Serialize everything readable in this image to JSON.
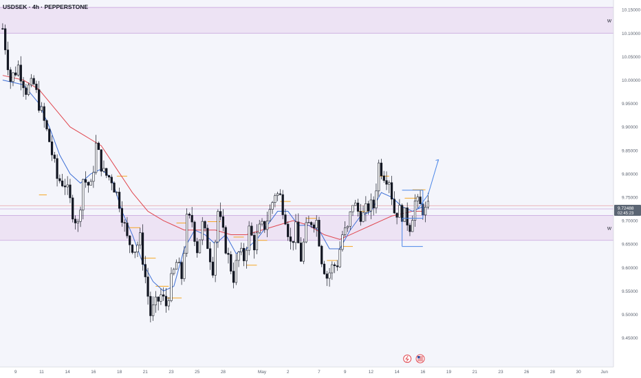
{
  "header": {
    "symbol_title": "USDSEK · 4h · PEPPERSTONE"
  },
  "price_label": {
    "price": "9.72488",
    "countdown": "02:45:23"
  },
  "zones": [
    {
      "label": "W",
      "from": 10.1,
      "to": 10.155
    },
    {
      "label": "W",
      "from": 9.658,
      "to": 9.711
    }
  ],
  "events": {
    "flash_icon": "lightning-event-icon",
    "flag_icon": "us-flag-event-icon"
  },
  "colors": {
    "bull": "#131722",
    "bear": "#131722",
    "zone_fill": "#ede3f4",
    "zone_line": "#c9a9de",
    "ema_fast": "#3d6fd6",
    "ema_slow": "#e0464e",
    "level": "#f5a623",
    "projection": "#4a86e8",
    "price_tag": "#5b6573",
    "panel_bg": "#f3f4fb"
  },
  "chart_data": {
    "type": "candlestick",
    "title": "USDSEK · 4h · PEPPERSTONE",
    "ylim": [
      9.42,
      10.165
    ],
    "y_ticks": [
      10.15,
      10.1,
      10.05,
      10.0,
      9.95,
      9.9,
      9.85,
      9.8,
      9.75,
      9.7,
      9.65,
      9.6,
      9.55,
      9.5,
      9.45
    ],
    "y_tick_labels": [
      "10.15000",
      "10.10000",
      "10.05000",
      "10.00000",
      "9.95000",
      "9.90000",
      "9.85000",
      "9.80000",
      "9.75000",
      "9.70000",
      "9.65000",
      "9.60000",
      "9.55000",
      "9.50000",
      "9.45000"
    ],
    "x_tick_labels": [
      "9",
      "11",
      "14",
      "16",
      "18",
      "21",
      "23",
      "25",
      "28",
      "May",
      "2",
      "7",
      "9",
      "12",
      "14",
      "16",
      "19",
      "21",
      "23",
      "26",
      "28",
      "30",
      "Jun"
    ],
    "x_tick_index": [
      5,
      15,
      25,
      35,
      45,
      55,
      65,
      75,
      85,
      100,
      110,
      122,
      132,
      142,
      152,
      162,
      172,
      182,
      192,
      202,
      212,
      222,
      232
    ],
    "n_slots": 236,
    "waypoints": [
      [
        0,
        10.11
      ],
      [
        3,
        10.0
      ],
      [
        6,
        10.03
      ],
      [
        9,
        9.98
      ],
      [
        12,
        9.99
      ],
      [
        15,
        9.93
      ],
      [
        18,
        9.87
      ],
      [
        21,
        9.79
      ],
      [
        24,
        9.78
      ],
      [
        27,
        9.72
      ],
      [
        29,
        9.69
      ],
      [
        31,
        9.79
      ],
      [
        34,
        9.77
      ],
      [
        36,
        9.86
      ],
      [
        39,
        9.8
      ],
      [
        42,
        9.79
      ],
      [
        45,
        9.74
      ],
      [
        48,
        9.66
      ],
      [
        51,
        9.64
      ],
      [
        53,
        9.66
      ],
      [
        55,
        9.58
      ],
      [
        57,
        9.5
      ],
      [
        59,
        9.52
      ],
      [
        61,
        9.54
      ],
      [
        63,
        9.52
      ],
      [
        65,
        9.57
      ],
      [
        67,
        9.61
      ],
      [
        69,
        9.58
      ],
      [
        71,
        9.7
      ],
      [
        73,
        9.7
      ],
      [
        75,
        9.64
      ],
      [
        77,
        9.69
      ],
      [
        79,
        9.65
      ],
      [
        81,
        9.6
      ],
      [
        83,
        9.72
      ],
      [
        85,
        9.67
      ],
      [
        87,
        9.62
      ],
      [
        89,
        9.58
      ],
      [
        91,
        9.63
      ],
      [
        93,
        9.62
      ],
      [
        95,
        9.68
      ],
      [
        97,
        9.65
      ],
      [
        99,
        9.68
      ],
      [
        101,
        9.69
      ],
      [
        103,
        9.72
      ],
      [
        105,
        9.76
      ],
      [
        107,
        9.75
      ],
      [
        109,
        9.71
      ],
      [
        111,
        9.65
      ],
      [
        113,
        9.68
      ],
      [
        115,
        9.62
      ],
      [
        117,
        9.68
      ],
      [
        119,
        9.7
      ],
      [
        121,
        9.7
      ],
      [
        123,
        9.62
      ],
      [
        125,
        9.58
      ],
      [
        127,
        9.6
      ],
      [
        129,
        9.61
      ],
      [
        131,
        9.67
      ],
      [
        133,
        9.68
      ],
      [
        135,
        9.74
      ],
      [
        137,
        9.72
      ],
      [
        139,
        9.71
      ],
      [
        141,
        9.73
      ],
      [
        143,
        9.73
      ],
      [
        145,
        9.82
      ],
      [
        147,
        9.8
      ],
      [
        149,
        9.79
      ],
      [
        151,
        9.72
      ],
      [
        153,
        9.72
      ],
      [
        155,
        9.71
      ],
      [
        157,
        9.69
      ],
      [
        159,
        9.74
      ],
      [
        161,
        9.73
      ],
      [
        163,
        9.72
      ],
      [
        164,
        9.725
      ]
    ],
    "ema_fast": [
      [
        0,
        10.0
      ],
      [
        8,
        9.99
      ],
      [
        14,
        9.95
      ],
      [
        18,
        9.9
      ],
      [
        22,
        9.84
      ],
      [
        26,
        9.8
      ],
      [
        30,
        9.78
      ],
      [
        34,
        9.8
      ],
      [
        38,
        9.81
      ],
      [
        42,
        9.79
      ],
      [
        46,
        9.72
      ],
      [
        50,
        9.67
      ],
      [
        54,
        9.61
      ],
      [
        58,
        9.57
      ],
      [
        62,
        9.55
      ],
      [
        66,
        9.56
      ],
      [
        70,
        9.64
      ],
      [
        74,
        9.68
      ],
      [
        78,
        9.67
      ],
      [
        82,
        9.65
      ],
      [
        86,
        9.67
      ],
      [
        90,
        9.63
      ],
      [
        94,
        9.64
      ],
      [
        98,
        9.66
      ],
      [
        102,
        9.69
      ],
      [
        106,
        9.72
      ],
      [
        110,
        9.72
      ],
      [
        114,
        9.69
      ],
      [
        118,
        9.69
      ],
      [
        122,
        9.68
      ],
      [
        126,
        9.64
      ],
      [
        130,
        9.64
      ],
      [
        134,
        9.68
      ],
      [
        138,
        9.71
      ],
      [
        142,
        9.72
      ],
      [
        146,
        9.76
      ],
      [
        150,
        9.75
      ],
      [
        154,
        9.73
      ],
      [
        158,
        9.72
      ],
      [
        162,
        9.73
      ]
    ],
    "ema_slow": [
      [
        0,
        10.01
      ],
      [
        8,
        10.0
      ],
      [
        14,
        9.98
      ],
      [
        20,
        9.94
      ],
      [
        26,
        9.9
      ],
      [
        32,
        9.88
      ],
      [
        38,
        9.86
      ],
      [
        44,
        9.81
      ],
      [
        50,
        9.76
      ],
      [
        56,
        9.72
      ],
      [
        62,
        9.7
      ],
      [
        66,
        9.69
      ],
      [
        70,
        9.68
      ],
      [
        76,
        9.68
      ],
      [
        82,
        9.68
      ],
      [
        88,
        9.67
      ],
      [
        94,
        9.67
      ],
      [
        100,
        9.68
      ],
      [
        106,
        9.69
      ],
      [
        112,
        9.7
      ],
      [
        118,
        9.69
      ],
      [
        124,
        9.67
      ],
      [
        130,
        9.66
      ],
      [
        134,
        9.67
      ],
      [
        138,
        9.68
      ],
      [
        142,
        9.69
      ],
      [
        146,
        9.7
      ],
      [
        150,
        9.71
      ],
      [
        154,
        9.715
      ],
      [
        158,
        9.72
      ],
      [
        162,
        9.72
      ]
    ],
    "levels": [
      [
        14,
        17,
        9.755
      ],
      [
        44,
        48,
        9.795
      ],
      [
        48,
        53,
        9.685
      ],
      [
        53,
        59,
        9.62
      ],
      [
        59,
        64,
        9.56
      ],
      [
        63,
        69,
        9.535
      ],
      [
        67,
        71,
        9.695
      ],
      [
        79,
        84,
        9.698
      ],
      [
        89,
        93,
        9.665
      ],
      [
        94,
        98,
        9.605
      ],
      [
        98,
        102,
        9.658
      ],
      [
        107,
        111,
        9.741
      ],
      [
        117,
        121,
        9.705
      ],
      [
        125,
        129,
        9.615
      ],
      [
        131,
        135,
        9.645
      ],
      [
        137,
        141,
        9.72
      ],
      [
        145,
        149,
        9.795
      ],
      [
        155,
        160,
        9.748
      ],
      [
        158,
        163,
        9.766
      ]
    ],
    "horizontal_lines": [
      9.725,
      9.732
    ],
    "projection": {
      "box": [
        [
          154,
          9.765
        ],
        [
          162,
          9.765
        ],
        [
          162,
          9.705
        ],
        [
          154,
          9.705
        ]
      ],
      "lower": [
        [
          154,
          9.645
        ],
        [
          162,
          9.645
        ]
      ],
      "arrow": [
        [
          160,
          9.725
        ],
        [
          164,
          9.755
        ],
        [
          168,
          9.83
        ]
      ]
    }
  }
}
